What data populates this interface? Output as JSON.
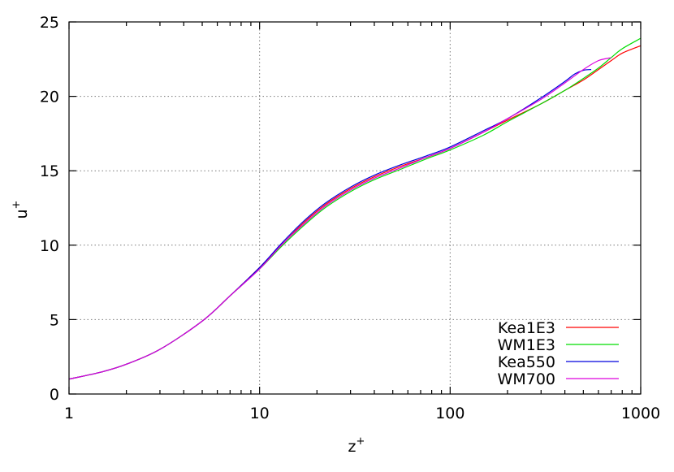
{
  "chart_data": {
    "type": "line",
    "title": "",
    "xlabel": "z",
    "xlabel_sup": "+",
    "ylabel": "u",
    "ylabel_sup": "+",
    "xscale": "log",
    "xlim": [
      1,
      1000
    ],
    "ylim": [
      0,
      25
    ],
    "grid": true,
    "legend_position": "bottom-right",
    "x_ticks": [
      1,
      10,
      100,
      1000
    ],
    "x_tick_labels": [
      "1",
      "10",
      "100",
      "1000"
    ],
    "y_ticks": [
      0,
      5,
      10,
      15,
      20,
      25
    ],
    "y_tick_labels": [
      "0",
      "5",
      "10",
      "15",
      "20",
      "25"
    ],
    "series": [
      {
        "name": "Kea1E3",
        "color": "#ff0000",
        "x": [
          1,
          1.5,
          2,
          3,
          5,
          7,
          10,
          13,
          17,
          22,
          30,
          40,
          55,
          75,
          100,
          150,
          200,
          300,
          400,
          500,
          600,
          700,
          800,
          1000
        ],
        "y": [
          1.0,
          1.5,
          2.0,
          3.0,
          4.9,
          6.6,
          8.5,
          10.0,
          11.5,
          12.7,
          13.8,
          14.6,
          15.3,
          15.9,
          16.5,
          17.6,
          18.4,
          19.5,
          20.4,
          21.1,
          21.8,
          22.4,
          22.9,
          23.4
        ]
      },
      {
        "name": "WM1E3",
        "color": "#00dd00",
        "x": [
          1,
          1.5,
          2,
          3,
          5,
          7,
          10,
          13,
          17,
          22,
          30,
          40,
          55,
          75,
          100,
          150,
          200,
          300,
          400,
          500,
          600,
          700,
          800,
          1000
        ],
        "y": [
          1.0,
          1.5,
          2.0,
          3.0,
          4.9,
          6.6,
          8.4,
          9.9,
          11.3,
          12.5,
          13.6,
          14.4,
          15.1,
          15.8,
          16.4,
          17.4,
          18.3,
          19.5,
          20.4,
          21.2,
          21.9,
          22.6,
          23.2,
          23.9
        ]
      },
      {
        "name": "Kea550",
        "color": "#0000dd",
        "x": [
          1,
          1.5,
          2,
          3,
          5,
          7,
          10,
          13,
          17,
          22,
          30,
          40,
          55,
          75,
          100,
          150,
          200,
          300,
          400,
          450,
          500,
          550
        ],
        "y": [
          1.0,
          1.5,
          2.0,
          3.0,
          4.9,
          6.6,
          8.5,
          10.1,
          11.6,
          12.8,
          13.9,
          14.7,
          15.4,
          16.0,
          16.6,
          17.7,
          18.5,
          19.9,
          21.0,
          21.5,
          21.75,
          21.8
        ]
      },
      {
        "name": "WM700",
        "color": "#dd00dd",
        "x": [
          1,
          1.5,
          2,
          3,
          5,
          7,
          10,
          13,
          17,
          22,
          30,
          40,
          55,
          75,
          100,
          150,
          200,
          300,
          400,
          500,
          600,
          700
        ],
        "y": [
          1.0,
          1.5,
          2.0,
          3.0,
          4.9,
          6.6,
          8.4,
          10.0,
          11.4,
          12.6,
          13.7,
          14.5,
          15.2,
          15.9,
          16.5,
          17.6,
          18.5,
          19.8,
          20.9,
          21.8,
          22.4,
          22.6
        ]
      }
    ]
  }
}
